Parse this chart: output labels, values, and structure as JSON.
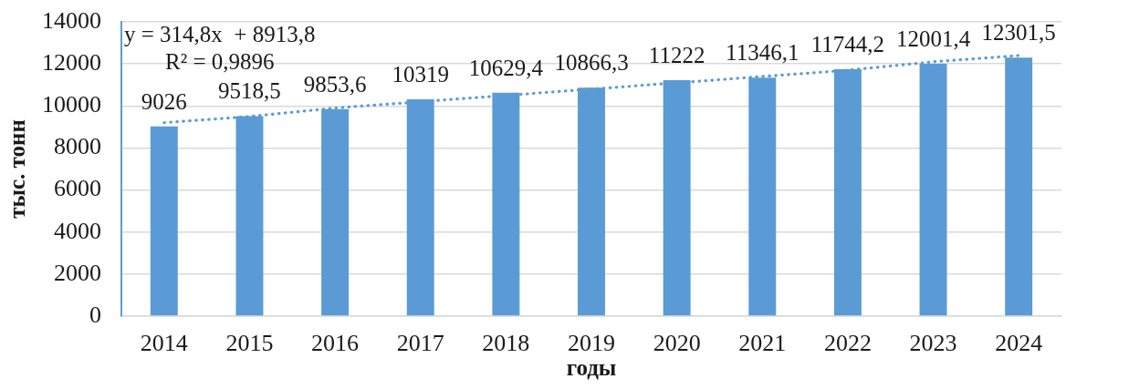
{
  "chart_data": {
    "type": "bar",
    "xlabel": "годы",
    "ylabel": "тыс. тонн",
    "categories": [
      "2014",
      "2015",
      "2016",
      "2017",
      "2018",
      "2019",
      "2020",
      "2021",
      "2022",
      "2023",
      "2024"
    ],
    "series": [
      {
        "color": "#5b9bd5",
        "values": [
          9026,
          9518.5,
          9853.6,
          10319,
          10629.4,
          10866.3,
          11222,
          11346.1,
          11744.2,
          12001.4,
          12301.5
        ],
        "value_labels": [
          "9026",
          "9518,5",
          "9853,6",
          "10319",
          "10629,4",
          "10866,3",
          "11222",
          "11346,1",
          "11744,2",
          "12001,4",
          "12301,5"
        ]
      },
      {
        "type": "line",
        "values": [
          9200,
          9500,
          9900,
          10200,
          10500,
          10800,
          11100,
          11400,
          11700,
          12100,
          12400
        ],
        "color": "#5b9bd5",
        "line_style": "dotted",
        "marker": "none"
      }
    ],
    "ylim": [
      0,
      14000
    ],
    "yticks": [
      0,
      2000,
      4000,
      6000,
      8000,
      10000,
      12000,
      14000
    ],
    "grid": "y",
    "annotations": [
      "y = 314,8x  + 8913,8",
      "R² = 0,9896"
    ]
  }
}
